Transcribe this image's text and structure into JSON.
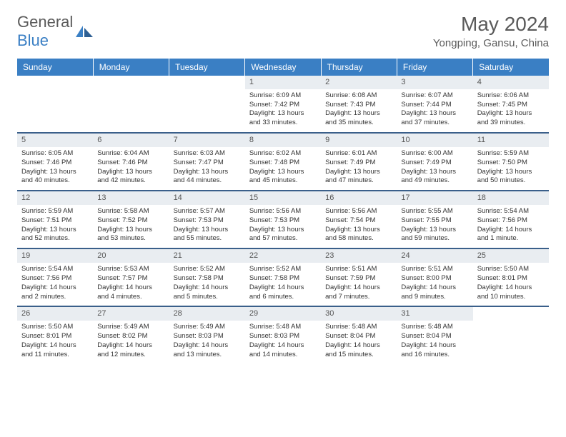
{
  "logo": {
    "part1": "General",
    "part2": "Blue"
  },
  "title": "May 2024",
  "location": "Yongping, Gansu, China",
  "colors": {
    "header_bg": "#3a7fc4",
    "row_border": "#3a5f8a",
    "daynum_bg": "#e9edf1",
    "text": "#333",
    "title_text": "#5a5a5a"
  },
  "weekdays": [
    "Sunday",
    "Monday",
    "Tuesday",
    "Wednesday",
    "Thursday",
    "Friday",
    "Saturday"
  ],
  "weeks": [
    [
      null,
      null,
      null,
      {
        "n": "1",
        "sr": "6:09 AM",
        "ss": "7:42 PM",
        "dl": "13 hours and 33 minutes."
      },
      {
        "n": "2",
        "sr": "6:08 AM",
        "ss": "7:43 PM",
        "dl": "13 hours and 35 minutes."
      },
      {
        "n": "3",
        "sr": "6:07 AM",
        "ss": "7:44 PM",
        "dl": "13 hours and 37 minutes."
      },
      {
        "n": "4",
        "sr": "6:06 AM",
        "ss": "7:45 PM",
        "dl": "13 hours and 39 minutes."
      }
    ],
    [
      {
        "n": "5",
        "sr": "6:05 AM",
        "ss": "7:46 PM",
        "dl": "13 hours and 40 minutes."
      },
      {
        "n": "6",
        "sr": "6:04 AM",
        "ss": "7:46 PM",
        "dl": "13 hours and 42 minutes."
      },
      {
        "n": "7",
        "sr": "6:03 AM",
        "ss": "7:47 PM",
        "dl": "13 hours and 44 minutes."
      },
      {
        "n": "8",
        "sr": "6:02 AM",
        "ss": "7:48 PM",
        "dl": "13 hours and 45 minutes."
      },
      {
        "n": "9",
        "sr": "6:01 AM",
        "ss": "7:49 PM",
        "dl": "13 hours and 47 minutes."
      },
      {
        "n": "10",
        "sr": "6:00 AM",
        "ss": "7:49 PM",
        "dl": "13 hours and 49 minutes."
      },
      {
        "n": "11",
        "sr": "5:59 AM",
        "ss": "7:50 PM",
        "dl": "13 hours and 50 minutes."
      }
    ],
    [
      {
        "n": "12",
        "sr": "5:59 AM",
        "ss": "7:51 PM",
        "dl": "13 hours and 52 minutes."
      },
      {
        "n": "13",
        "sr": "5:58 AM",
        "ss": "7:52 PM",
        "dl": "13 hours and 53 minutes."
      },
      {
        "n": "14",
        "sr": "5:57 AM",
        "ss": "7:53 PM",
        "dl": "13 hours and 55 minutes."
      },
      {
        "n": "15",
        "sr": "5:56 AM",
        "ss": "7:53 PM",
        "dl": "13 hours and 57 minutes."
      },
      {
        "n": "16",
        "sr": "5:56 AM",
        "ss": "7:54 PM",
        "dl": "13 hours and 58 minutes."
      },
      {
        "n": "17",
        "sr": "5:55 AM",
        "ss": "7:55 PM",
        "dl": "13 hours and 59 minutes."
      },
      {
        "n": "18",
        "sr": "5:54 AM",
        "ss": "7:56 PM",
        "dl": "14 hours and 1 minute."
      }
    ],
    [
      {
        "n": "19",
        "sr": "5:54 AM",
        "ss": "7:56 PM",
        "dl": "14 hours and 2 minutes."
      },
      {
        "n": "20",
        "sr": "5:53 AM",
        "ss": "7:57 PM",
        "dl": "14 hours and 4 minutes."
      },
      {
        "n": "21",
        "sr": "5:52 AM",
        "ss": "7:58 PM",
        "dl": "14 hours and 5 minutes."
      },
      {
        "n": "22",
        "sr": "5:52 AM",
        "ss": "7:58 PM",
        "dl": "14 hours and 6 minutes."
      },
      {
        "n": "23",
        "sr": "5:51 AM",
        "ss": "7:59 PM",
        "dl": "14 hours and 7 minutes."
      },
      {
        "n": "24",
        "sr": "5:51 AM",
        "ss": "8:00 PM",
        "dl": "14 hours and 9 minutes."
      },
      {
        "n": "25",
        "sr": "5:50 AM",
        "ss": "8:01 PM",
        "dl": "14 hours and 10 minutes."
      }
    ],
    [
      {
        "n": "26",
        "sr": "5:50 AM",
        "ss": "8:01 PM",
        "dl": "14 hours and 11 minutes."
      },
      {
        "n": "27",
        "sr": "5:49 AM",
        "ss": "8:02 PM",
        "dl": "14 hours and 12 minutes."
      },
      {
        "n": "28",
        "sr": "5:49 AM",
        "ss": "8:03 PM",
        "dl": "14 hours and 13 minutes."
      },
      {
        "n": "29",
        "sr": "5:48 AM",
        "ss": "8:03 PM",
        "dl": "14 hours and 14 minutes."
      },
      {
        "n": "30",
        "sr": "5:48 AM",
        "ss": "8:04 PM",
        "dl": "14 hours and 15 minutes."
      },
      {
        "n": "31",
        "sr": "5:48 AM",
        "ss": "8:04 PM",
        "dl": "14 hours and 16 minutes."
      },
      null
    ]
  ],
  "labels": {
    "sunrise": "Sunrise:",
    "sunset": "Sunset:",
    "daylight": "Daylight:"
  }
}
